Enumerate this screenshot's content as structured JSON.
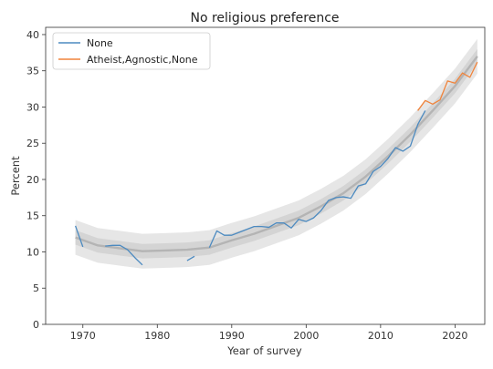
{
  "chart_data": {
    "type": "line",
    "title": "No religious preference",
    "xlabel": "Year of survey",
    "ylabel": "Percent",
    "xlim": [
      1965,
      2024
    ],
    "ylim": [
      0,
      41
    ],
    "xticks": [
      1970,
      1980,
      1990,
      2000,
      2010,
      2020
    ],
    "yticks": [
      0,
      5,
      10,
      15,
      20,
      25,
      30,
      35,
      40
    ],
    "grid": false,
    "legend_position": "top-left",
    "colors": {
      "None": "#4c8ac0",
      "Atheist,Agnostic,None": "#f0843c",
      "trend": "#b4b4b4",
      "band_outer": "#e6e6e6",
      "band_inner": "#cfcfcf"
    },
    "series": [
      {
        "name": "None",
        "segments": [
          [
            [
              1969,
              13.6
            ],
            [
              1970,
              10.7
            ]
          ],
          [
            [
              1973,
              10.8
            ],
            [
              1974,
              10.9
            ],
            [
              1975,
              10.9
            ],
            [
              1976,
              10.3
            ],
            [
              1977,
              9.2
            ],
            [
              1978,
              8.2
            ]
          ],
          [
            [
              1984,
              8.8
            ],
            [
              1985,
              9.4
            ]
          ],
          [
            [
              1987,
              10.6
            ],
            [
              1988,
              12.9
            ],
            [
              1989,
              12.3
            ],
            [
              1990,
              12.3
            ],
            [
              1991,
              12.7
            ],
            [
              1993,
              13.5
            ],
            [
              1994,
              13.5
            ],
            [
              1995,
              13.4
            ],
            [
              1996,
              14.0
            ],
            [
              1997,
              14.0
            ],
            [
              1998,
              13.3
            ],
            [
              1999,
              14.5
            ],
            [
              2000,
              14.2
            ],
            [
              2001,
              14.7
            ],
            [
              2002,
              15.7
            ],
            [
              2003,
              17.1
            ],
            [
              2004,
              17.5
            ],
            [
              2005,
              17.6
            ],
            [
              2006,
              17.4
            ],
            [
              2007,
              19.1
            ],
            [
              2008,
              19.4
            ],
            [
              2009,
              21.1
            ],
            [
              2010,
              21.8
            ],
            [
              2011,
              22.9
            ],
            [
              2012,
              24.4
            ],
            [
              2013,
              23.9
            ],
            [
              2014,
              24.6
            ],
            [
              2015,
              27.6
            ],
            [
              2016,
              29.5
            ]
          ]
        ]
      },
      {
        "name": "Atheist,Agnostic,None",
        "segments": [
          [
            [
              2015,
              29.5
            ],
            [
              2016,
              30.9
            ],
            [
              2017,
              30.4
            ],
            [
              2018,
              31.0
            ],
            [
              2019,
              33.6
            ],
            [
              2020,
              33.3
            ],
            [
              2021,
              34.7
            ],
            [
              2022,
              34.1
            ],
            [
              2023,
              36.2
            ]
          ]
        ]
      }
    ],
    "trend": {
      "x": [
        1969,
        1972,
        1975,
        1978,
        1981,
        1984,
        1987,
        1990,
        1993,
        1996,
        1999,
        2002,
        2005,
        2008,
        2011,
        2014,
        2017,
        2020,
        2023
      ],
      "y": [
        12.0,
        10.9,
        10.5,
        10.1,
        10.2,
        10.3,
        10.6,
        11.6,
        12.5,
        13.6,
        14.7,
        16.3,
        18.1,
        20.4,
        23.2,
        26.2,
        29.5,
        32.9,
        37.0
      ],
      "band_inner": 1.0,
      "band_outer": 2.4
    }
  }
}
